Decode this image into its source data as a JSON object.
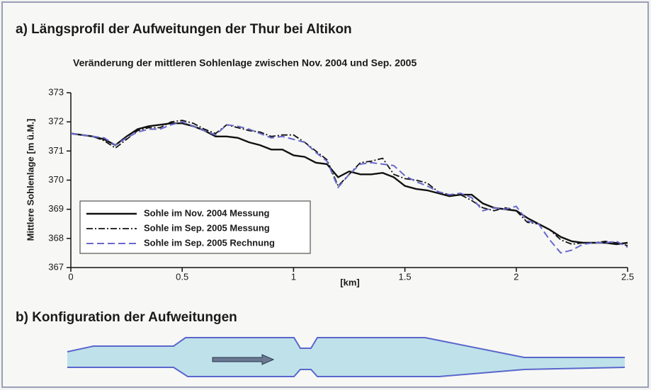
{
  "panel_a_title": "a) Längsprofil der Aufweitungen der Thur bei Altikon",
  "panel_b_title": "b) Konfiguration der Aufweitungen",
  "chart_data": {
    "type": "line",
    "title": "Veränderung der mittleren Sohlenlage zwischen Nov. 2004 und Sep. 2005",
    "x_label": "[km]",
    "y_label": "Mittlere Sohlenlage [m ü.M.]",
    "x": [
      0,
      0.05,
      0.1,
      0.15,
      0.2,
      0.25,
      0.3,
      0.35,
      0.4,
      0.45,
      0.5,
      0.55,
      0.6,
      0.65,
      0.7,
      0.75,
      0.8,
      0.85,
      0.9,
      0.95,
      1.0,
      1.05,
      1.1,
      1.15,
      1.2,
      1.25,
      1.3,
      1.35,
      1.4,
      1.45,
      1.5,
      1.55,
      1.6,
      1.65,
      1.7,
      1.75,
      1.8,
      1.85,
      1.9,
      1.95,
      2.0,
      2.05,
      2.1,
      2.15,
      2.2,
      2.25,
      2.3,
      2.35,
      2.4,
      2.45,
      2.5
    ],
    "series": [
      {
        "name": "Sohle im Nov. 2004 Messung",
        "color": "#111111",
        "style": "solid",
        "values": [
          371.6,
          371.55,
          371.5,
          371.4,
          371.2,
          371.5,
          371.75,
          371.85,
          371.9,
          371.95,
          371.95,
          371.85,
          371.7,
          371.5,
          371.5,
          371.45,
          371.3,
          371.2,
          371.05,
          371.05,
          370.85,
          370.8,
          370.6,
          370.55,
          370.1,
          370.3,
          370.2,
          370.2,
          370.25,
          370.1,
          369.8,
          369.7,
          369.65,
          369.55,
          369.45,
          369.5,
          369.5,
          369.2,
          369.05,
          369.0,
          368.95,
          368.7,
          368.5,
          368.3,
          368.05,
          367.9,
          367.85,
          367.85,
          367.85,
          367.8,
          367.85
        ]
      },
      {
        "name": "Sohle im Sep. 2005 Messung",
        "color": "#111111",
        "style": "dashdot",
        "values": [
          371.6,
          371.55,
          371.5,
          371.35,
          371.1,
          371.4,
          371.7,
          371.8,
          371.8,
          372.0,
          372.05,
          371.95,
          371.75,
          371.6,
          371.9,
          371.8,
          371.7,
          371.65,
          371.5,
          371.55,
          371.55,
          371.3,
          371.0,
          370.7,
          369.8,
          370.2,
          370.6,
          370.65,
          370.75,
          370.2,
          370.05,
          370.0,
          369.9,
          369.6,
          369.5,
          369.5,
          369.3,
          369.05,
          368.95,
          369.05,
          368.95,
          368.55,
          368.5,
          368.3,
          367.95,
          367.8,
          367.85,
          367.85,
          367.9,
          367.85,
          367.75
        ]
      },
      {
        "name": "Sohle im Sep. 2005 Rechnung",
        "color": "#6868cc",
        "style": "dashed",
        "values": [
          371.6,
          371.55,
          371.5,
          371.45,
          371.2,
          371.45,
          371.65,
          371.75,
          371.75,
          371.9,
          372.0,
          371.85,
          371.7,
          371.55,
          371.9,
          371.85,
          371.75,
          371.6,
          371.45,
          371.5,
          371.4,
          371.3,
          370.95,
          370.65,
          369.75,
          370.2,
          370.55,
          370.6,
          370.55,
          370.5,
          370.15,
          369.95,
          369.8,
          369.6,
          369.5,
          369.55,
          369.4,
          368.95,
          369.05,
          369.0,
          369.1,
          368.6,
          368.5,
          367.95,
          367.5,
          367.6,
          367.8,
          367.85,
          367.85,
          367.9,
          367.7
        ]
      }
    ],
    "xlim": [
      0,
      2.5
    ],
    "xticks": [
      0,
      0.5,
      1,
      1.5,
      2,
      2.5
    ],
    "ylim": [
      367,
      373
    ],
    "yticks": [
      367,
      368,
      369,
      370,
      371,
      372,
      373
    ],
    "legend": "lower left"
  }
}
